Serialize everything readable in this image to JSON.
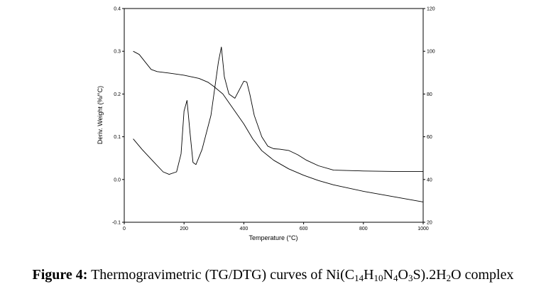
{
  "chart_data": {
    "type": "line",
    "xlabel": "Temperature (°C)",
    "ylabel": "Deriv. Weight (%/°C)",
    "xlim": [
      0,
      1000
    ],
    "ylim": [
      -0.1,
      0.4
    ],
    "y2lim": [
      20,
      120
    ],
    "x_ticks": [
      0,
      200,
      400,
      600,
      800,
      1000
    ],
    "y_ticks": [
      -0.1,
      0.0,
      0.1,
      0.2,
      0.3,
      0.4
    ],
    "y2_ticks": [
      20,
      40,
      60,
      80,
      100,
      120
    ],
    "x_tick_labels": [
      "0",
      "200",
      "400",
      "600",
      "800",
      "1000"
    ],
    "y_tick_labels": [
      "-0.1",
      "0.0",
      "0.1",
      "0.2",
      "0.3",
      "0.4"
    ],
    "y2_tick_labels": [
      "20",
      "40",
      "60",
      "80",
      "100",
      "120"
    ],
    "grid": false,
    "legend": "none",
    "series": [
      {
        "axis": "left",
        "x": [
          30,
          60,
          100,
          130,
          150,
          175,
          190,
          200,
          210,
          220,
          230,
          240,
          260,
          290,
          315,
          325,
          335,
          350,
          370,
          385,
          400,
          410,
          420,
          435,
          460,
          480,
          500,
          520,
          550,
          580,
          610,
          650,
          700,
          800,
          900,
          1000
        ],
        "values": [
          0.095,
          0.07,
          0.04,
          0.018,
          0.012,
          0.018,
          0.06,
          0.16,
          0.185,
          0.11,
          0.04,
          0.035,
          0.07,
          0.15,
          0.275,
          0.31,
          0.24,
          0.2,
          0.19,
          0.21,
          0.23,
          0.228,
          0.2,
          0.15,
          0.1,
          0.078,
          0.072,
          0.071,
          0.068,
          0.058,
          0.045,
          0.032,
          0.022,
          0.02,
          0.019,
          0.019
        ]
      },
      {
        "axis": "right",
        "x": [
          30,
          50,
          70,
          90,
          110,
          150,
          200,
          250,
          280,
          300,
          330,
          360,
          400,
          430,
          460,
          500,
          550,
          600,
          650,
          700,
          800,
          900,
          1000
        ],
        "values": [
          100,
          98.5,
          95,
          91.5,
          90.5,
          89.8,
          88.8,
          87.3,
          85.5,
          83.5,
          80,
          74,
          66,
          59,
          53.5,
          49,
          45,
          42,
          39.5,
          37.5,
          34.5,
          32,
          29.5
        ]
      }
    ]
  },
  "caption": {
    "label": "Figure 4:",
    "text": " Thermogravimetric (TG/DTG) curves of Ni(C",
    "sub1": "14",
    "t2": "H",
    "sub2": "10",
    "t3": "N",
    "sub3": "4",
    "t4": "O",
    "sub4": "3",
    "t5": "S).2H",
    "sub5": "2",
    "t6": "O complex"
  }
}
